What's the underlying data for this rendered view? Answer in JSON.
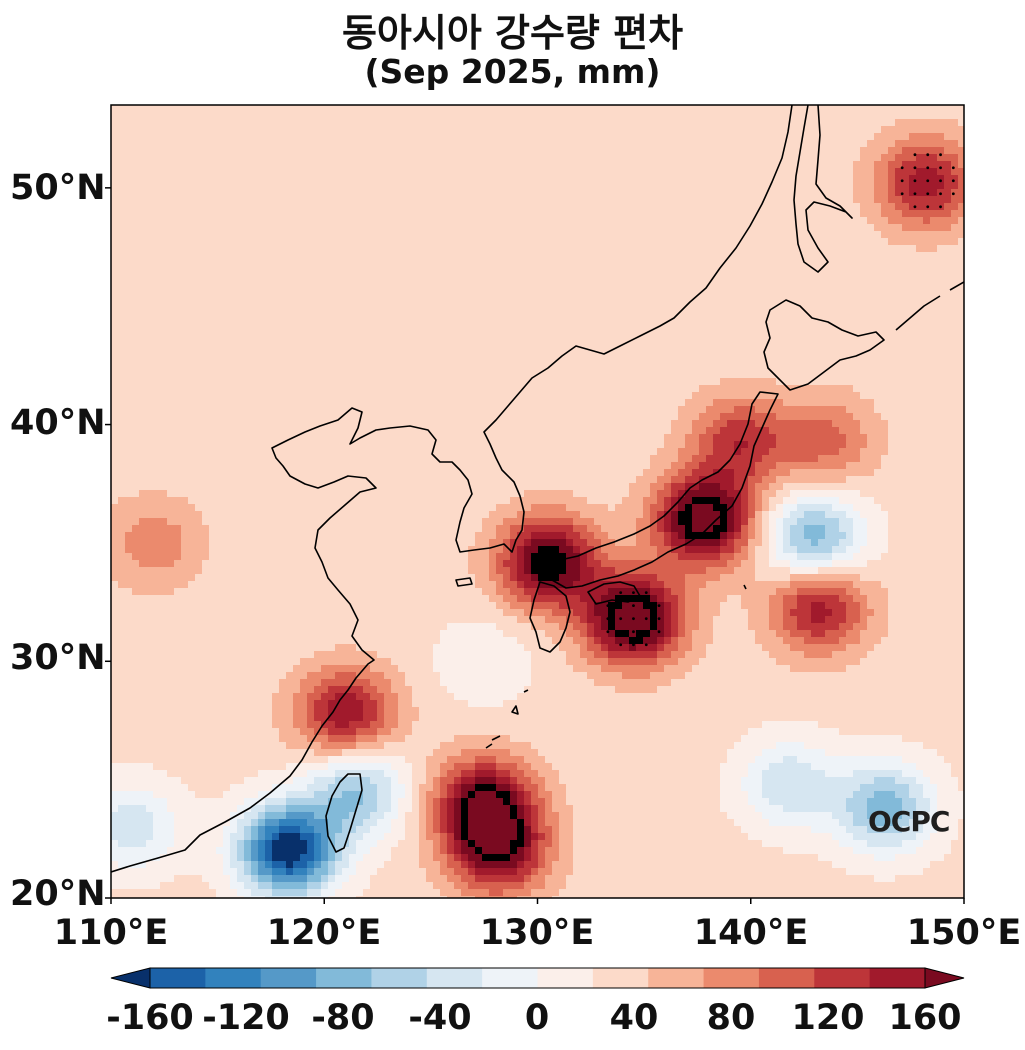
{
  "title": "동아시아 강수량 편차",
  "subtitle": "(Sep 2025, mm)",
  "y_ticks": [
    "50°N",
    "40°N",
    "30°N",
    "20°N"
  ],
  "x_ticks": [
    "110°E",
    "120°E",
    "130°E",
    "140°E",
    "150°E"
  ],
  "colorbar": {
    "levels": [
      -180,
      -160,
      -140,
      -120,
      -100,
      -80,
      -60,
      -40,
      -20,
      0,
      20,
      40,
      60,
      80,
      100,
      120,
      140,
      160,
      180
    ],
    "labels": [
      "-160",
      "-120",
      "-80",
      "-40",
      "0",
      "40",
      "80",
      "120",
      "160"
    ],
    "colors": [
      "#08306b",
      "#1c62a8",
      "#3282bd",
      "#5599c8",
      "#82bad9",
      "#b0d2e7",
      "#d6e6f1",
      "#eef3f8",
      "#fbefea",
      "#fcdac9",
      "#f7b498",
      "#eb8a6d",
      "#d8614f",
      "#bd3539",
      "#a11a2c",
      "#7a0a20"
    ],
    "extend": "both"
  },
  "logo": "OCPC",
  "map_extent": {
    "lon": [
      110,
      150
    ],
    "lat": [
      20,
      53.5
    ]
  },
  "anomaly_centers": [
    {
      "lon": 134.5,
      "lat": 31.8,
      "value": 170
    },
    {
      "lon": 137.8,
      "lat": 36.0,
      "value": 165
    },
    {
      "lon": 130.5,
      "lat": 34.2,
      "value": 150
    },
    {
      "lon": 127.5,
      "lat": 24.0,
      "value": 140
    },
    {
      "lon": 128.2,
      "lat": 22.0,
      "value": 120
    },
    {
      "lon": 121.0,
      "lat": 27.8,
      "value": 110
    },
    {
      "lon": 143.2,
      "lat": 32.3,
      "value": 105
    },
    {
      "lon": 148.2,
      "lat": 50.2,
      "value": 105
    },
    {
      "lon": 139.5,
      "lat": 39.3,
      "value": 85
    },
    {
      "lon": 143.5,
      "lat": 39.3,
      "value": 60
    },
    {
      "lon": 112.0,
      "lat": 35.0,
      "value": 45
    },
    {
      "lon": 118.3,
      "lat": 22.0,
      "value": -185
    },
    {
      "lon": 121.5,
      "lat": 24.5,
      "value": -90
    },
    {
      "lon": 143.0,
      "lat": 35.2,
      "value": -105
    },
    {
      "lon": 146.3,
      "lat": 23.8,
      "value": -100
    },
    {
      "lon": 141.8,
      "lat": 24.8,
      "value": -65
    },
    {
      "lon": 111.0,
      "lat": 23.0,
      "value": -60
    },
    {
      "lon": 127.5,
      "lat": 30.0,
      "value": -25
    }
  ],
  "stippling": [
    {
      "lon": 148.3,
      "lat": 50.3
    },
    {
      "lon": 134.5,
      "lat": 31.8
    }
  ]
}
